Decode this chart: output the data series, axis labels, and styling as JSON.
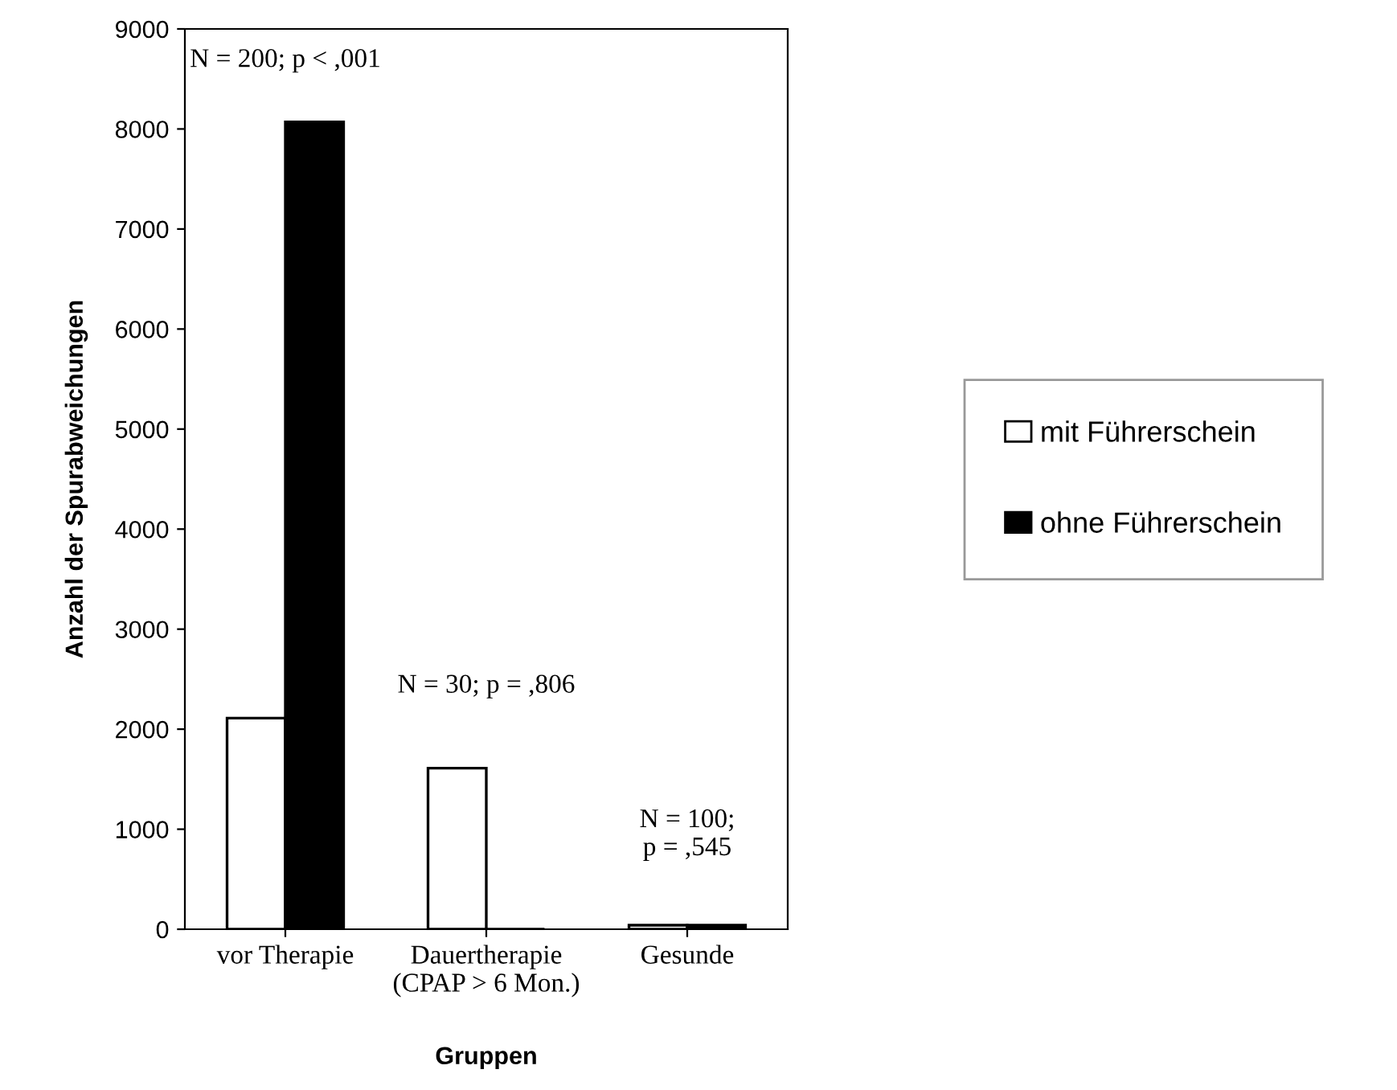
{
  "chart_data": {
    "type": "bar",
    "xlabel": "Gruppen",
    "ylabel": "Anzahl der Spurabweichungen",
    "categories": [
      "vor Therapie",
      "Dauertherapie\n(CPAP > 6 Mon.)",
      "Gesunde"
    ],
    "series": [
      {
        "name": "mit Führerschein",
        "color": "#ffffff",
        "values": [
          2110,
          1610,
          40
        ]
      },
      {
        "name": "ohne Führerschein",
        "color": "#000000",
        "values": [
          8070,
          0,
          40
        ]
      }
    ],
    "ylim": [
      0,
      9000
    ],
    "yticks": [
      0,
      1000,
      2000,
      3000,
      4000,
      5000,
      6000,
      7000,
      8000,
      9000
    ],
    "annotations": [
      "N = 200; p < ,001",
      "N = 30; p = ,806",
      "N = 100;\np = ,545"
    ],
    "legend": "right",
    "grid": false
  }
}
